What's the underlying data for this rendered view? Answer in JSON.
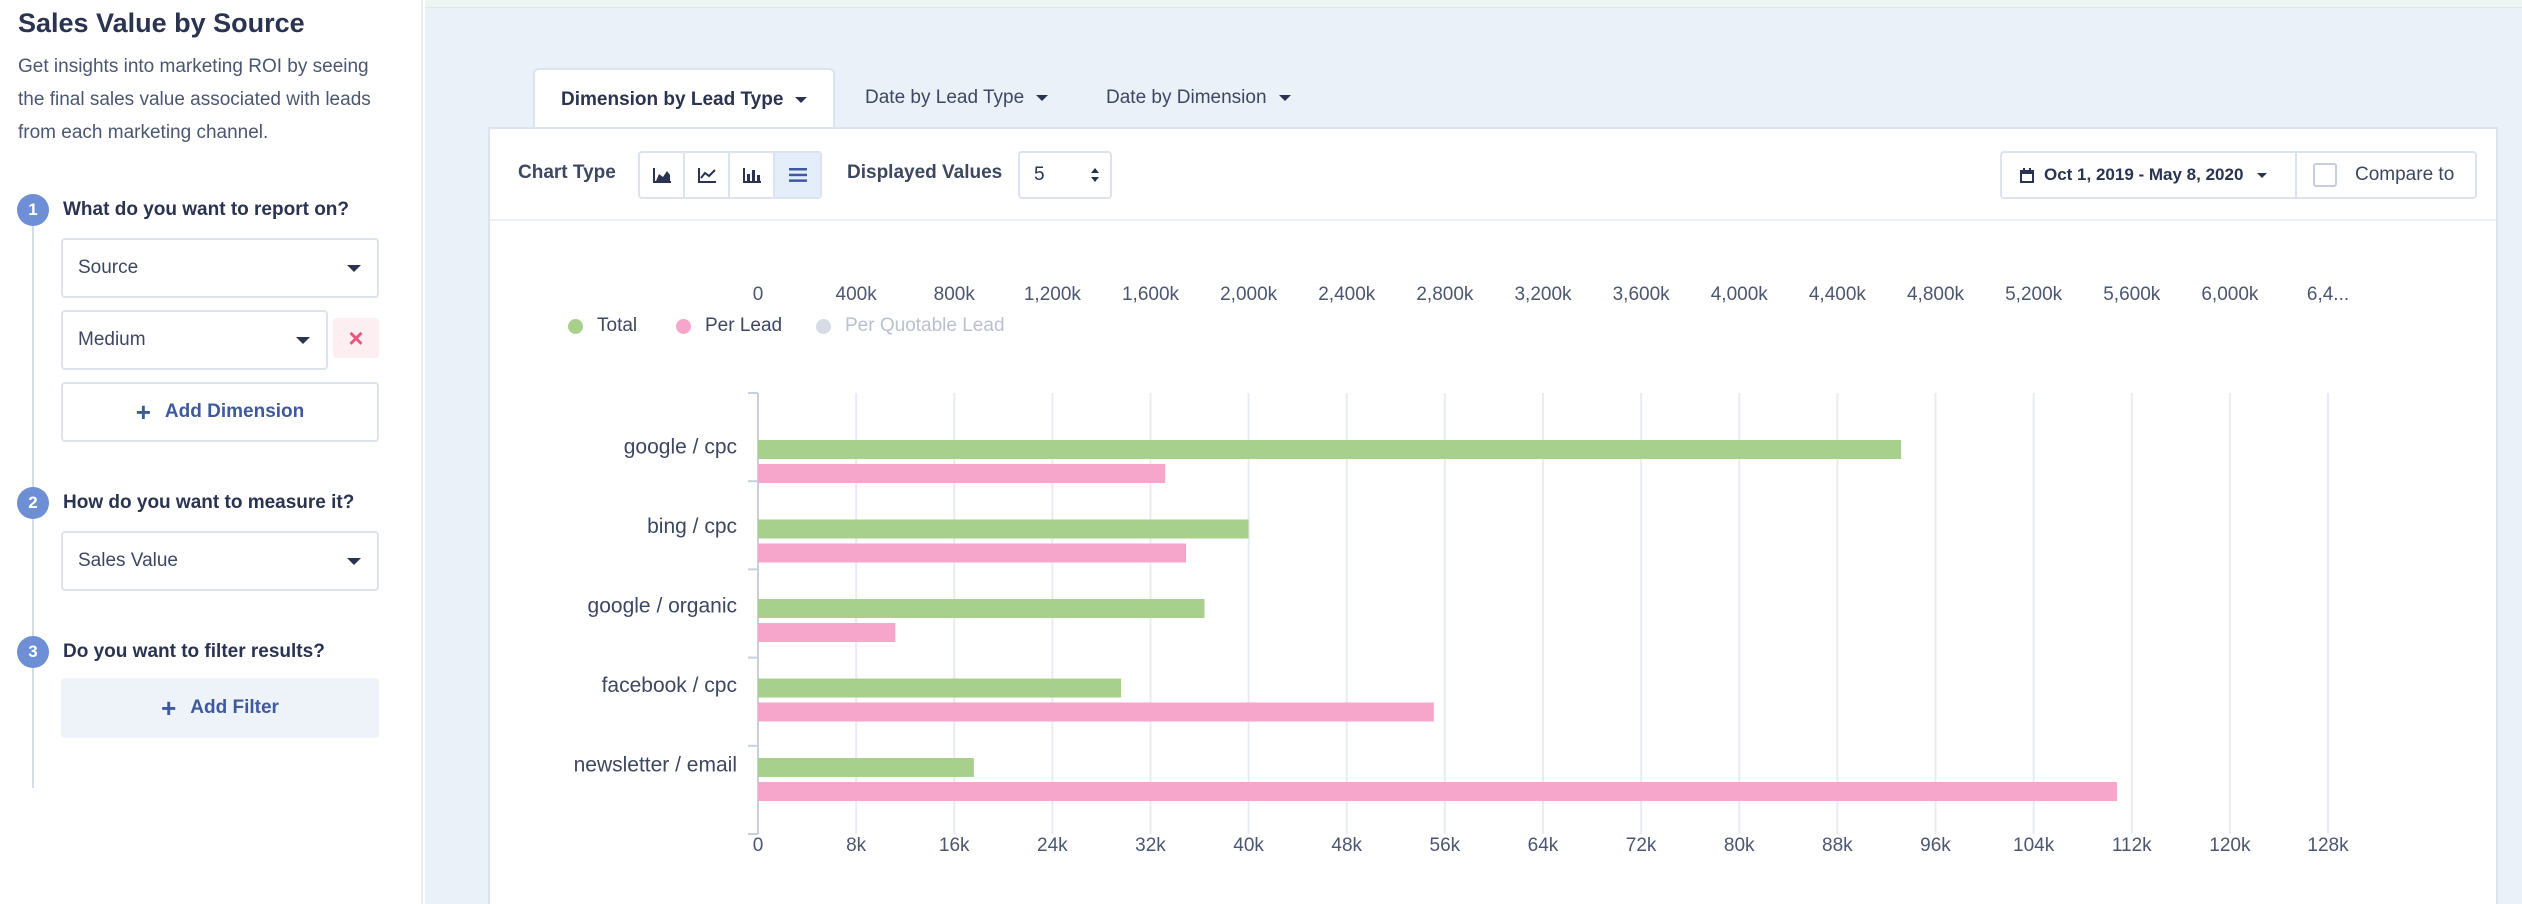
{
  "sidebar": {
    "title": "Sales Value by Source",
    "description": "Get insights into marketing ROI by seeing the final sales value associated with leads from each marketing channel.",
    "steps": [
      {
        "num": "1",
        "question": "What do you want to report on?"
      },
      {
        "num": "2",
        "question": "How do you want to measure it?"
      },
      {
        "num": "3",
        "question": "Do you want to filter results?"
      }
    ],
    "dimension_primary": "Source",
    "dimension_secondary": "Medium",
    "remove_label": "×",
    "add_dimension_label": "Add Dimension",
    "measure": "Sales Value",
    "add_filter_label": "Add Filter"
  },
  "tabs": [
    {
      "label": "Dimension by Lead Type",
      "active": true
    },
    {
      "label": "Date by Lead Type",
      "active": false
    },
    {
      "label": "Date by Dimension",
      "active": false
    }
  ],
  "toolbar": {
    "chart_type_label": "Chart Type",
    "chart_type_icons": [
      "area-chart-icon",
      "line-chart-icon",
      "column-chart-icon",
      "bar-chart-icon"
    ],
    "displayed_values_label": "Displayed Values",
    "displayed_values": "5",
    "date_range": "Oct 1, 2019 - May 8, 2020",
    "compare_label": "Compare to"
  },
  "legend": [
    {
      "label": "Total",
      "color": "#a8d08d",
      "active": true
    },
    {
      "label": "Per Lead",
      "color": "#f7a6cb",
      "active": true
    },
    {
      "label": "Per Quotable Lead",
      "color": "#d6dbe6",
      "active": false
    }
  ],
  "chart_data": {
    "type": "bar",
    "orientation": "horizontal",
    "categories": [
      "google / cpc",
      "bing / cpc",
      "google / organic",
      "facebook / cpc",
      "newsletter / email"
    ],
    "series": [
      {
        "name": "Total",
        "values": [
          4660000,
          2000000,
          1820000,
          1480000,
          880000
        ],
        "axis": "top",
        "color": "#a8d08d"
      },
      {
        "name": "Per Lead",
        "values": [
          33200,
          34900,
          11200,
          55100,
          110800
        ],
        "axis": "bottom",
        "color": "#f7a6cb"
      }
    ],
    "top_axis": {
      "min": 0,
      "max": 6400000,
      "ticks": [
        "0",
        "400k",
        "800k",
        "1,200k",
        "1,600k",
        "2,000k",
        "2,400k",
        "2,800k",
        "3,200k",
        "3,600k",
        "4,000k",
        "4,400k",
        "4,800k",
        "5,200k",
        "5,600k",
        "6,000k",
        "6,4..."
      ]
    },
    "bottom_axis": {
      "min": 0,
      "max": 128000,
      "ticks": [
        "0",
        "8k",
        "16k",
        "24k",
        "32k",
        "40k",
        "48k",
        "56k",
        "64k",
        "72k",
        "80k",
        "88k",
        "96k",
        "104k",
        "112k",
        "120k",
        "128k"
      ]
    },
    "grid": true
  }
}
